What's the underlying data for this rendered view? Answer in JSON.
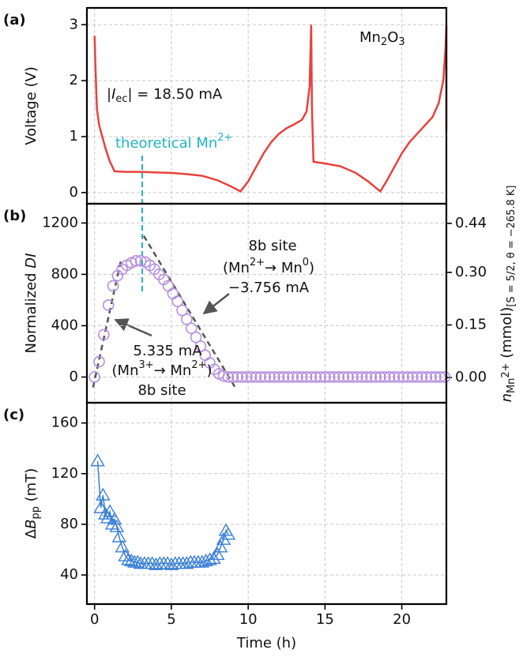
{
  "chart_data": [
    {
      "type": "line",
      "panel_label": "(a)",
      "ylabel": "Voltage (V)",
      "xlim": [
        -0.5,
        22.9
      ],
      "ylim": [
        -0.2,
        3.3
      ],
      "yticks": [
        0,
        1,
        2,
        3
      ],
      "grid": true,
      "x": [
        0,
        0.05,
        0.15,
        0.3,
        0.5,
        0.7,
        1.0,
        1.3,
        2,
        3,
        4,
        5,
        6,
        7,
        8,
        8.8,
        9.5,
        10,
        10.5,
        11,
        11.5,
        12,
        12.5,
        13,
        13.5,
        13.8,
        14.0,
        14.1,
        14.15,
        14.25,
        15,
        16,
        17,
        17.8,
        18.6,
        19,
        19.5,
        20,
        20.5,
        21,
        21.5,
        22,
        22.4,
        22.7,
        22.85,
        22.9,
        22.9
      ],
      "series": [
        {
          "color": "#e8413c",
          "values": [
            2.8,
            2.3,
            1.5,
            1.2,
            1.0,
            0.8,
            0.55,
            0.38,
            0.37,
            0.37,
            0.36,
            0.35,
            0.33,
            0.3,
            0.22,
            0.12,
            0.02,
            0.2,
            0.45,
            0.7,
            0.9,
            1.05,
            1.15,
            1.22,
            1.3,
            1.45,
            1.9,
            3.0,
            1.5,
            0.55,
            0.52,
            0.47,
            0.35,
            0.2,
            0.02,
            0.2,
            0.45,
            0.7,
            0.9,
            1.05,
            1.2,
            1.35,
            1.6,
            2.0,
            2.6,
            3.0,
            1.1
          ]
        }
      ],
      "annotations": [
        [
          {
            "text": "Mn"
          },
          {
            "text": "2",
            "style": "sub"
          },
          {
            "text": "O"
          },
          {
            "text": "3",
            "style": "sub"
          }
        ],
        [
          {
            "text": "|"
          },
          {
            "text": "I",
            "style": "italic"
          },
          {
            "text": "ec",
            "style": "sub"
          },
          {
            "text": "| = 18.50 mA"
          }
        ]
      ],
      "reference_line": {
        "x": 3.1,
        "color": "#1fb5c4",
        "label": [
          {
            "text": "theoretical Mn"
          },
          {
            "text": "2+",
            "style": "sup"
          }
        ]
      }
    },
    {
      "type": "scatter",
      "panel_label": "(b)",
      "ylabel": [
        {
          "text": "Normalized "
        },
        {
          "text": "DI",
          "style": "italic"
        }
      ],
      "y2label": [
        {
          "text": "n",
          "style": "italic"
        },
        {
          "text": "Mn",
          "style": "sub"
        },
        {
          "text": "2+",
          "style": "subsup"
        },
        {
          "text": " (mmol)"
        },
        {
          "text": "[S = 5/2, θ = −265.8 K]",
          "style": "sub"
        }
      ],
      "xlim": [
        -0.5,
        22.9
      ],
      "ylim": [
        -200,
        1350
      ],
      "yticks": [
        0,
        400,
        800,
        1200
      ],
      "y2lim": [
        -0.072,
        0.496
      ],
      "y2ticks": [
        {
          "value": 0,
          "label": "0.00"
        },
        0.15,
        {
          "value": 0.3,
          "label": "0.30"
        },
        0.44
      ],
      "grid": true,
      "x": [
        0,
        0.3,
        0.6,
        0.9,
        1.2,
        1.5,
        1.8,
        2.1,
        2.4,
        2.7,
        3,
        3.3,
        3.6,
        3.9,
        4.2,
        4.5,
        4.8,
        5.1,
        5.4,
        5.7,
        6,
        6.3,
        6.6,
        6.9,
        7.2,
        7.5,
        7.8,
        8.1,
        8.4,
        8.7,
        9,
        9.3,
        9.6,
        9.9,
        10.2,
        10.5,
        10.8,
        11.1,
        11.4,
        11.7,
        12,
        12.3,
        12.6,
        12.9,
        13.2,
        13.5,
        13.8,
        14.1,
        14.4,
        14.7,
        15,
        15.3,
        15.6,
        15.9,
        16.2,
        16.5,
        16.8,
        17.1,
        17.4,
        17.7,
        18,
        18.3,
        18.6,
        18.9,
        19.2,
        19.5,
        19.8,
        20.1,
        20.4,
        20.7,
        21,
        21.3,
        21.6,
        21.9,
        22.2,
        22.5,
        22.8
      ],
      "series": [
        {
          "color": "#b68ee0",
          "values": [
            0,
            120,
            330,
            560,
            710,
            790,
            840,
            870,
            890,
            905,
            905,
            895,
            870,
            840,
            800,
            760,
            710,
            650,
            590,
            520,
            450,
            380,
            310,
            240,
            170,
            110,
            60,
            25,
            8,
            0,
            0,
            0,
            0,
            0,
            0,
            0,
            0,
            0,
            0,
            0,
            0,
            0,
            0,
            0,
            0,
            0,
            0,
            0,
            0,
            0,
            0,
            0,
            0,
            0,
            0,
            0,
            0,
            0,
            0,
            0,
            0,
            0,
            0,
            0,
            0,
            0,
            0,
            0,
            0,
            0,
            0,
            0,
            0,
            0,
            0,
            0,
            0
          ]
        }
      ],
      "fit_lines": [
        {
          "x": [
            -0.1,
            1.7
          ],
          "y": [
            -80,
            900
          ]
        },
        {
          "x": [
            3.2,
            9.2
          ],
          "y": [
            1100,
            -90
          ]
        }
      ],
      "annotations": [
        [
          {
            "text": "8b site"
          }
        ],
        [
          {
            "text": "(Mn"
          },
          {
            "text": "2+",
            "style": "sup"
          },
          {
            "text": "→ Mn"
          },
          {
            "text": "0",
            "style": "sup"
          },
          {
            "text": ")"
          }
        ],
        [
          {
            "text": "−3.756 mA"
          }
        ],
        [
          {
            "text": "5.335 mA"
          }
        ],
        [
          {
            "text": "(Mn"
          },
          {
            "text": "3+",
            "style": "sup"
          },
          {
            "text": "→ Mn"
          },
          {
            "text": "2+",
            "style": "sup"
          },
          {
            "text": ")"
          }
        ],
        [
          {
            "text": "8b site"
          }
        ]
      ]
    },
    {
      "type": "line",
      "panel_label": "(c)",
      "marker": "triangle",
      "ylabel": [
        {
          "text": "Δ"
        },
        {
          "text": "B",
          "style": "italic"
        },
        {
          "text": "pp",
          "style": "sub"
        },
        {
          "text": " (mT)"
        }
      ],
      "xlabel": "Time (h)",
      "xlim": [
        -0.5,
        22.9
      ],
      "xticks": [
        0,
        5,
        10,
        15,
        20
      ],
      "ylim": [
        17,
        176
      ],
      "yticks": [
        40,
        80,
        120,
        160
      ],
      "grid": true,
      "x": [
        0.2,
        0.4,
        0.55,
        0.7,
        0.85,
        1.0,
        1.15,
        1.3,
        1.45,
        1.6,
        1.8,
        2.0,
        2.2,
        2.4,
        2.6,
        2.8,
        3.0,
        3.25,
        3.5,
        3.75,
        4.0,
        4.25,
        4.5,
        4.75,
        5.0,
        5.25,
        5.5,
        5.75,
        6.0,
        6.25,
        6.5,
        6.75,
        7.0,
        7.25,
        7.5,
        7.75,
        8.0,
        8.2,
        8.4,
        8.55,
        8.7
      ],
      "series": [
        {
          "color": "#3a7fd5",
          "values": [
            130,
            93,
            103,
            88,
            85,
            90,
            80,
            84,
            78,
            70,
            62,
            55,
            52,
            51,
            50,
            50,
            49,
            49,
            49,
            49,
            48,
            49,
            49,
            49,
            48,
            49,
            49,
            49,
            49,
            50,
            50,
            50,
            50,
            51,
            52,
            53,
            56,
            62,
            68,
            75,
            72
          ]
        }
      ]
    }
  ]
}
